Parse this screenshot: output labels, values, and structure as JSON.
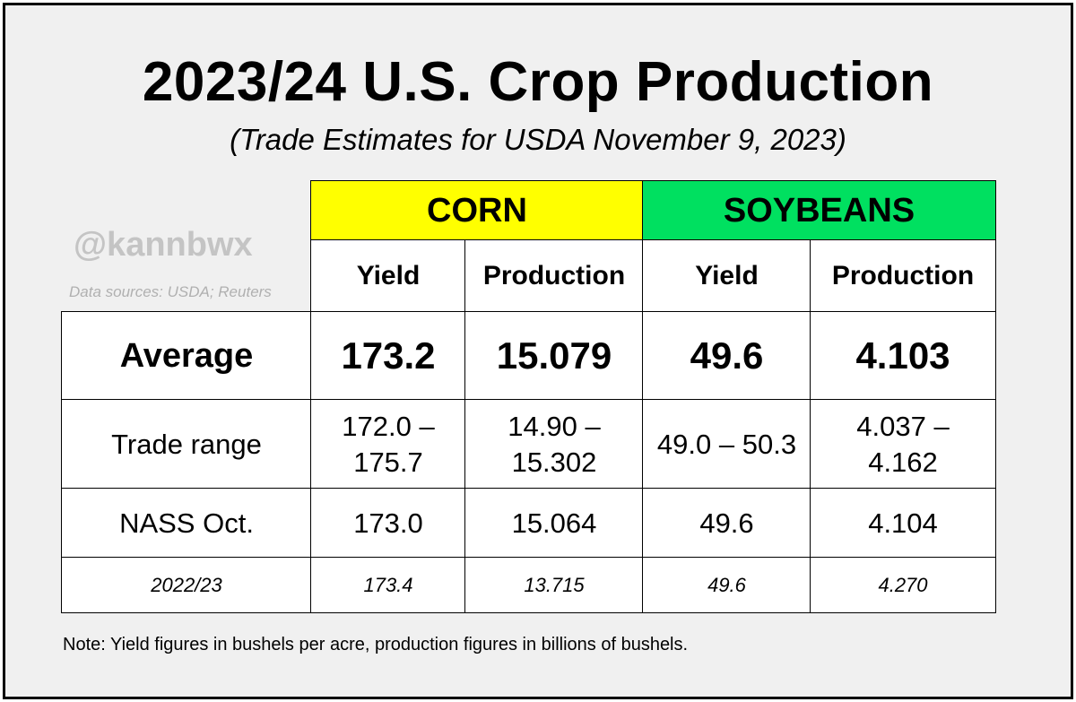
{
  "title": "2023/24 U.S. Crop Production",
  "subtitle": "(Trade Estimates for USDA November 9, 2023)",
  "watermark": "@kannbwx",
  "sources": "Data sources: USDA; Reuters",
  "crops": {
    "corn": "CORN",
    "soybeans": "SOYBEANS"
  },
  "columns": [
    "Yield",
    "Production",
    "Yield",
    "Production"
  ],
  "colors": {
    "corn_header": "#ffff00",
    "soybeans_header": "#00e060",
    "background": "#f0f0f0"
  },
  "rows": {
    "average": {
      "label": "Average",
      "values": [
        "173.2",
        "15.079",
        "49.6",
        "4.103"
      ]
    },
    "trade_range": {
      "label": "Trade range",
      "values": [
        "172.0 – 175.7",
        "14.90 – 15.302",
        "49.0 – 50.3",
        "4.037 – 4.162"
      ]
    },
    "nass_oct": {
      "label": "NASS Oct.",
      "values": [
        "173.0",
        "15.064",
        "49.6",
        "4.104"
      ]
    },
    "prior_year": {
      "label": "2022/23",
      "values": [
        "173.4",
        "13.715",
        "49.6",
        "4.270"
      ]
    }
  },
  "note": "Note: Yield figures in bushels per acre, production figures in billions of bushels."
}
